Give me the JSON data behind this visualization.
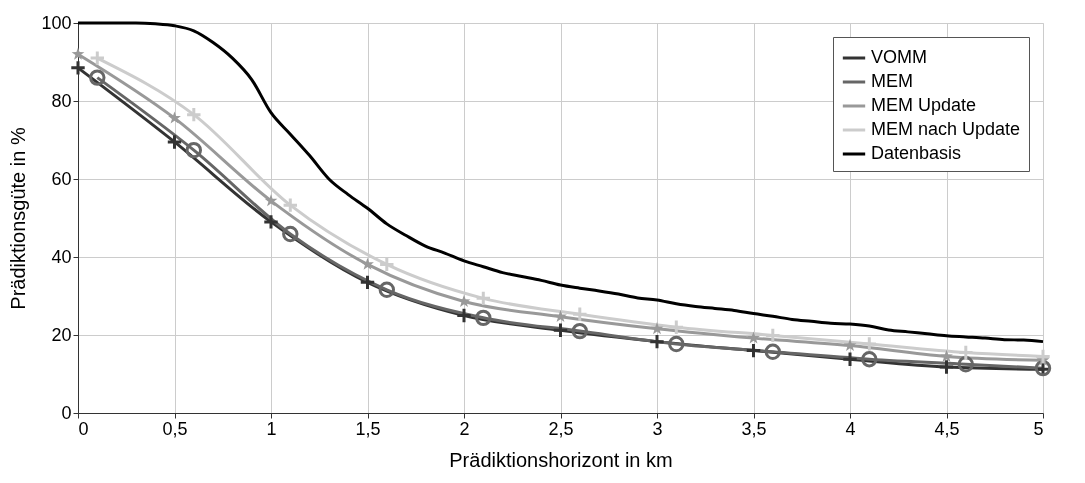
{
  "chart_data": {
    "type": "line",
    "xlabel": "Prädiktionshorizont in km",
    "ylabel": "Prädiktionsgüte in %",
    "xlim": [
      0,
      5
    ],
    "ylim": [
      0,
      100
    ],
    "xticks": [
      0,
      {
        "value": 0.5,
        "label": "0,5"
      },
      1,
      {
        "value": 1.5,
        "label": "1,5"
      },
      2,
      {
        "value": 2.5,
        "label": "2,5"
      },
      3,
      {
        "value": 3.5,
        "label": "3,5"
      },
      4,
      {
        "value": 4.5,
        "label": "4,5"
      },
      5
    ],
    "yticks": [
      0,
      20,
      40,
      60,
      80,
      100
    ],
    "grid": true,
    "legend": "top right",
    "series": [
      {
        "name": "VOMM",
        "color": "#333333",
        "marker": "cross",
        "x": [
          0,
          0.5,
          1,
          1.5,
          2,
          2.5,
          3,
          3.5,
          4,
          4.5,
          5
        ],
        "values": [
          88.5,
          69.5,
          49,
          33.5,
          25,
          21.2,
          18.3,
          16,
          13.8,
          11.8,
          11.2
        ]
      },
      {
        "name": "MEM",
        "color": "#666666",
        "marker": "circle",
        "x": [
          0.1,
          0.6,
          1.1,
          1.6,
          2.1,
          2.6,
          3.1,
          3.6,
          4.1,
          4.6,
          5
        ],
        "values": [
          86,
          67.4,
          45.9,
          31.6,
          24.4,
          21,
          17.7,
          15.7,
          13.8,
          12.5,
          11.5
        ]
      },
      {
        "name": "MEM Update",
        "color": "#999999",
        "marker": "star",
        "x": [
          0,
          0.5,
          1,
          1.5,
          2,
          2.5,
          3,
          3.5,
          4,
          4.5,
          5
        ],
        "values": [
          92,
          75.6,
          54.4,
          38.1,
          28.6,
          24.7,
          21.6,
          19.2,
          17.3,
          14.5,
          13.5
        ]
      },
      {
        "name": "MEM nach Update",
        "color": "#cccccc",
        "marker": "cross",
        "x": [
          0.1,
          0.6,
          1.1,
          1.6,
          2.1,
          2.6,
          3.1,
          3.6,
          4.1,
          4.6,
          5
        ],
        "values": [
          91,
          76.5,
          53.3,
          38.1,
          29.4,
          25.3,
          22,
          19.9,
          17.7,
          15.5,
          14.5
        ]
      },
      {
        "name": "Datenbasis",
        "color": "#000000",
        "marker": "none",
        "x": [
          0,
          0.3,
          0.4,
          0.5,
          0.6,
          0.7,
          0.8,
          0.9,
          1.0,
          1.1,
          1.2,
          1.3,
          1.4,
          1.5,
          1.6,
          1.7,
          1.8,
          1.9,
          2.0,
          2.1,
          2.2,
          2.3,
          2.4,
          2.5,
          2.6,
          2.7,
          2.8,
          2.9,
          3.0,
          3.1,
          3.2,
          3.3,
          3.4,
          3.5,
          3.6,
          3.7,
          3.8,
          3.9,
          4.0,
          4.1,
          4.2,
          4.3,
          4.4,
          4.5,
          4.6,
          4.7,
          4.8,
          4.9,
          5.0
        ],
        "values": [
          100,
          100,
          99.8,
          99.3,
          98,
          95,
          91,
          85.5,
          77,
          71.5,
          66,
          60,
          56,
          52.5,
          48.5,
          45.5,
          42.8,
          41,
          39,
          37.5,
          36,
          35,
          34,
          32.8,
          32,
          31.3,
          30.5,
          29.5,
          29,
          28,
          27.3,
          26.8,
          26.3,
          25.5,
          24.8,
          24,
          23.5,
          23,
          22.8,
          22.3,
          21.3,
          20.8,
          20.3,
          19.8,
          19.5,
          19.2,
          18.8,
          18.7,
          18.3
        ]
      }
    ]
  }
}
